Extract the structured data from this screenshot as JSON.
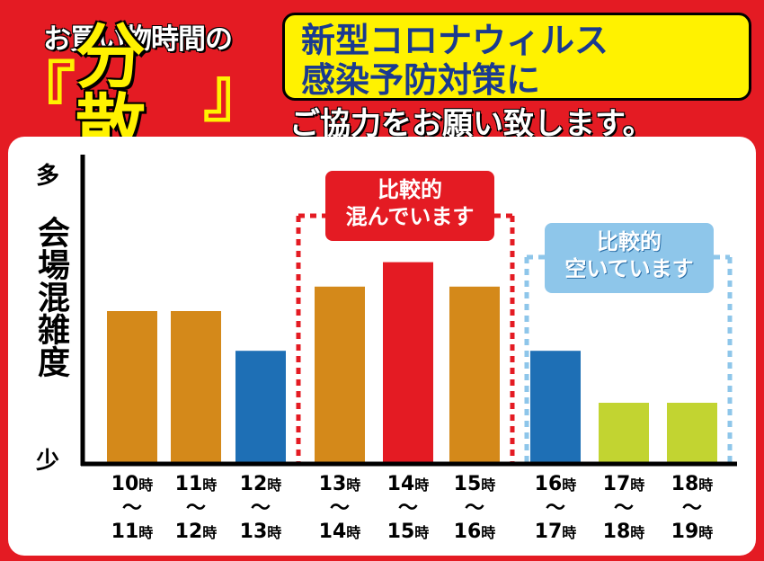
{
  "header": {
    "title_top": "お買い物時間の",
    "bracket_open": "『",
    "title_main": "分散",
    "bracket_close": "』",
    "notice_line1": "新型コロナウィルス",
    "notice_line1b": "感染予防対策に",
    "notice_line2": "ご協力をお願い致します。"
  },
  "annotations": {
    "crowded_1": "比較的",
    "crowded_2": "混んでいます",
    "empty_1": "比較的",
    "empty_2": "空いています"
  },
  "colors": {
    "background": "#e41b23",
    "orange": "#d4891a",
    "red": "#e41b23",
    "blue": "#1e6fb5",
    "green": "#c2d431",
    "yellow": "#fff200",
    "lightblue": "#8ec6ea"
  },
  "chart_data": {
    "type": "bar",
    "ylabel": "会場混雑度",
    "ytop": "多",
    "ybottom": "少",
    "ylim": [
      0,
      100
    ],
    "categories": [
      {
        "start": "10",
        "end": "11",
        "unit": "時"
      },
      {
        "start": "11",
        "end": "12",
        "unit": "時"
      },
      {
        "start": "12",
        "end": "13",
        "unit": "時"
      },
      {
        "start": "13",
        "end": "14",
        "unit": "時"
      },
      {
        "start": "14",
        "end": "15",
        "unit": "時"
      },
      {
        "start": "15",
        "end": "16",
        "unit": "時"
      },
      {
        "start": "16",
        "end": "17",
        "unit": "時"
      },
      {
        "start": "17",
        "end": "18",
        "unit": "時"
      },
      {
        "start": "18",
        "end": "19",
        "unit": "時"
      }
    ],
    "tilde": "〜",
    "values": [
      50,
      50,
      37,
      58,
      66,
      58,
      37,
      20,
      20
    ],
    "bar_colors": [
      "orange",
      "orange",
      "blue",
      "orange",
      "red",
      "orange",
      "blue",
      "green",
      "green"
    ]
  }
}
